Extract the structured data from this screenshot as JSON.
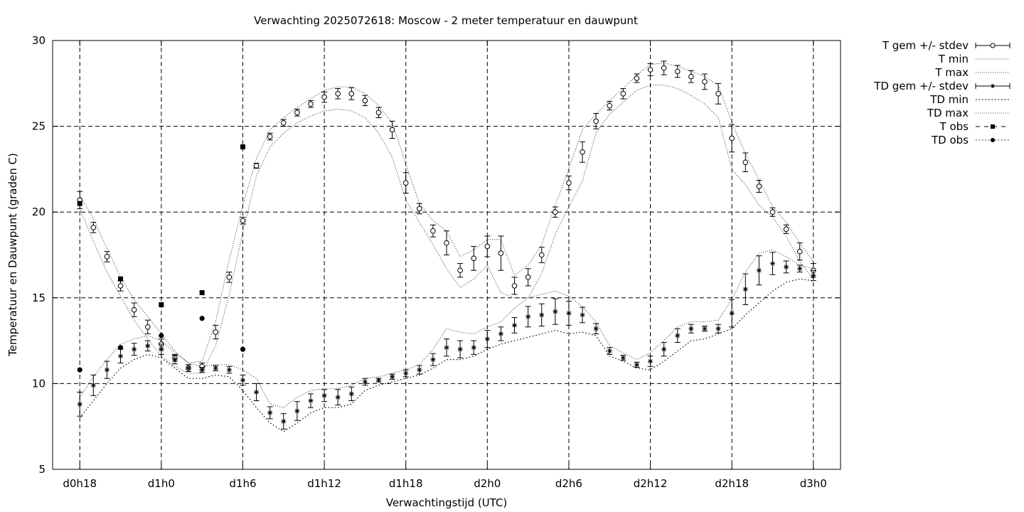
{
  "chart_data": {
    "type": "line",
    "title": "Verwachting 2025072618: Moscow - 2 meter temperatuur en dauwpunt",
    "xlabel": "Verwachtingstijd (UTC)",
    "ylabel": "Temperatuur en Dauwpunt (graden C)",
    "ylim": [
      5,
      30
    ],
    "xlim_hours": [
      -2,
      56
    ],
    "yticks": [
      5,
      10,
      15,
      20,
      25,
      30
    ],
    "xticks": [
      {
        "h": 0,
        "label": "d0h18"
      },
      {
        "h": 6,
        "label": "d1h0"
      },
      {
        "h": 12,
        "label": "d1h6"
      },
      {
        "h": 18,
        "label": "d1h12"
      },
      {
        "h": 24,
        "label": "d1h18"
      },
      {
        "h": 30,
        "label": "d2h0"
      },
      {
        "h": 36,
        "label": "d2h6"
      },
      {
        "h": 42,
        "label": "d2h12"
      },
      {
        "h": 48,
        "label": "d2h18"
      },
      {
        "h": 54,
        "label": "d3h0"
      }
    ],
    "grid": true,
    "legend_position": "outside-right",
    "legend": [
      "T gem +/- stdev",
      "T min",
      "T max",
      "TD gem +/- stdev",
      "TD min",
      "TD max",
      "T obs",
      "TD obs"
    ],
    "x_hours": [
      0,
      1,
      2,
      3,
      4,
      5,
      6,
      7,
      8,
      9,
      10,
      11,
      12,
      13,
      14,
      15,
      16,
      17,
      18,
      19,
      20,
      21,
      22,
      23,
      24,
      25,
      26,
      27,
      28,
      29,
      30,
      31,
      32,
      33,
      34,
      35,
      36,
      37,
      38,
      39,
      40,
      41,
      42,
      43,
      44,
      45,
      46,
      47,
      48,
      49,
      50,
      51,
      52,
      53,
      54
    ],
    "series": [
      {
        "name": "T gem +/- stdev",
        "mean": [
          20.7,
          19.1,
          17.4,
          15.7,
          14.3,
          13.3,
          12.3,
          11.5,
          10.9,
          11.0,
          13.0,
          16.2,
          19.5,
          22.7,
          24.4,
          25.2,
          25.8,
          26.3,
          26.7,
          26.9,
          26.9,
          26.5,
          25.8,
          24.8,
          21.7,
          20.2,
          18.9,
          18.2,
          16.6,
          17.3,
          18.0,
          17.6,
          15.7,
          16.2,
          17.5,
          20.0,
          21.7,
          23.5,
          25.3,
          26.2,
          26.9,
          27.8,
          28.3,
          28.4,
          28.2,
          27.9,
          27.6,
          26.9,
          24.3,
          22.9,
          21.5,
          20.0,
          19.0,
          17.7,
          16.6
        ],
        "stdev": [
          0.5,
          0.3,
          0.3,
          0.3,
          0.4,
          0.4,
          0.3,
          0.2,
          0.2,
          0.2,
          0.4,
          0.3,
          0.2,
          0.15,
          0.2,
          0.2,
          0.2,
          0.2,
          0.3,
          0.3,
          0.35,
          0.3,
          0.3,
          0.5,
          0.6,
          0.3,
          0.35,
          0.7,
          0.4,
          0.7,
          0.6,
          1.0,
          0.5,
          0.5,
          0.45,
          0.3,
          0.4,
          0.6,
          0.45,
          0.25,
          0.3,
          0.25,
          0.35,
          0.4,
          0.35,
          0.35,
          0.45,
          0.6,
          0.8,
          0.55,
          0.35,
          0.25,
          0.25,
          0.5,
          0.4
        ]
      },
      {
        "name": "T min",
        "values": [
          20.2,
          18.3,
          16.5,
          15.1,
          13.7,
          12.6,
          11.6,
          11.0,
          10.6,
          10.6,
          12.2,
          15.2,
          18.8,
          22.1,
          23.8,
          24.6,
          25.2,
          25.6,
          25.9,
          26.0,
          25.9,
          25.5,
          24.6,
          23.2,
          20.7,
          19.4,
          18.1,
          16.7,
          15.6,
          16.1,
          16.9,
          15.3,
          15.0,
          15.0,
          16.4,
          18.7,
          20.3,
          21.8,
          24.6,
          25.7,
          26.4,
          27.1,
          27.4,
          27.4,
          27.2,
          26.8,
          26.3,
          25.5,
          22.5,
          21.6,
          20.4,
          19.7,
          18.6,
          17.1,
          16.1
        ]
      },
      {
        "name": "T max",
        "values": [
          21.0,
          19.6,
          17.9,
          16.2,
          14.9,
          13.9,
          12.9,
          11.9,
          11.2,
          11.3,
          13.6,
          17.2,
          20.4,
          23.1,
          24.8,
          25.5,
          26.1,
          26.6,
          27.1,
          27.3,
          27.3,
          26.9,
          26.2,
          25.2,
          22.8,
          20.5,
          19.5,
          18.9,
          17.4,
          17.8,
          18.4,
          18.4,
          16.3,
          16.9,
          18.1,
          20.4,
          22.5,
          24.8,
          25.7,
          26.5,
          27.2,
          28.0,
          28.6,
          28.7,
          28.5,
          28.2,
          27.9,
          27.4,
          25.2,
          23.4,
          21.9,
          20.3,
          19.4,
          18.2,
          17.1
        ]
      },
      {
        "name": "TD gem +/- stdev",
        "mean": [
          8.8,
          9.9,
          10.8,
          11.6,
          12.0,
          12.2,
          12.0,
          11.4,
          10.9,
          10.8,
          10.9,
          10.8,
          10.2,
          9.5,
          8.3,
          7.8,
          8.4,
          9.0,
          9.3,
          9.2,
          9.4,
          10.1,
          10.2,
          10.4,
          10.6,
          10.8,
          11.4,
          12.1,
          12.0,
          12.1,
          12.6,
          12.9,
          13.4,
          13.9,
          14.0,
          14.2,
          14.1,
          14.0,
          13.2,
          11.9,
          11.5,
          11.1,
          11.3,
          12.0,
          12.8,
          13.2,
          13.2,
          13.2,
          14.1,
          15.5,
          16.6,
          17.0,
          16.8,
          16.7,
          16.3
        ],
        "stdev": [
          0.7,
          0.6,
          0.5,
          0.4,
          0.35,
          0.3,
          0.3,
          0.25,
          0.2,
          0.15,
          0.15,
          0.2,
          0.3,
          0.5,
          0.35,
          0.45,
          0.55,
          0.4,
          0.35,
          0.45,
          0.4,
          0.2,
          0.1,
          0.15,
          0.2,
          0.25,
          0.35,
          0.5,
          0.5,
          0.4,
          0.5,
          0.4,
          0.45,
          0.6,
          0.65,
          0.75,
          0.7,
          0.45,
          0.3,
          0.2,
          0.15,
          0.15,
          0.3,
          0.4,
          0.4,
          0.25,
          0.15,
          0.25,
          0.8,
          0.9,
          0.85,
          0.65,
          0.35,
          0.2,
          0.3
        ]
      },
      {
        "name": "TD min",
        "values": [
          8.0,
          9.0,
          10.0,
          10.9,
          11.4,
          11.7,
          11.5,
          10.9,
          10.3,
          10.3,
          10.5,
          10.4,
          9.6,
          8.6,
          7.7,
          7.2,
          7.7,
          8.3,
          8.6,
          8.6,
          8.8,
          9.6,
          9.9,
          10.1,
          10.3,
          10.5,
          10.9,
          11.4,
          11.4,
          11.6,
          12.0,
          12.3,
          12.5,
          12.7,
          12.9,
          13.1,
          12.9,
          13.0,
          12.8,
          11.6,
          11.3,
          10.9,
          10.8,
          11.3,
          11.9,
          12.5,
          12.6,
          12.9,
          13.2,
          14.0,
          14.7,
          15.4,
          15.9,
          16.1,
          16.0
        ]
      },
      {
        "name": "TD max",
        "values": [
          9.2,
          10.4,
          11.4,
          12.3,
          12.6,
          12.8,
          12.5,
          11.8,
          11.2,
          11.0,
          11.1,
          11.1,
          10.8,
          10.3,
          8.8,
          8.6,
          9.2,
          9.6,
          9.7,
          9.7,
          9.9,
          10.3,
          10.4,
          10.6,
          10.8,
          11.1,
          12.0,
          13.2,
          13.0,
          12.9,
          13.3,
          13.6,
          14.4,
          15.0,
          15.2,
          15.4,
          15.1,
          14.5,
          13.6,
          12.2,
          11.8,
          11.4,
          11.8,
          12.5,
          13.3,
          13.6,
          13.6,
          13.7,
          14.9,
          16.5,
          17.6,
          17.8,
          17.4,
          16.9,
          16.7
        ]
      },
      {
        "name": "T obs",
        "x_hours": [
          0,
          3,
          6,
          9,
          12
        ],
        "values": [
          20.5,
          16.1,
          14.6,
          15.3,
          23.8
        ]
      },
      {
        "name": "TD obs",
        "x_hours": [
          0,
          3,
          6,
          9,
          12
        ],
        "values": [
          10.8,
          12.1,
          12.8,
          13.8,
          12.0
        ]
      }
    ]
  }
}
